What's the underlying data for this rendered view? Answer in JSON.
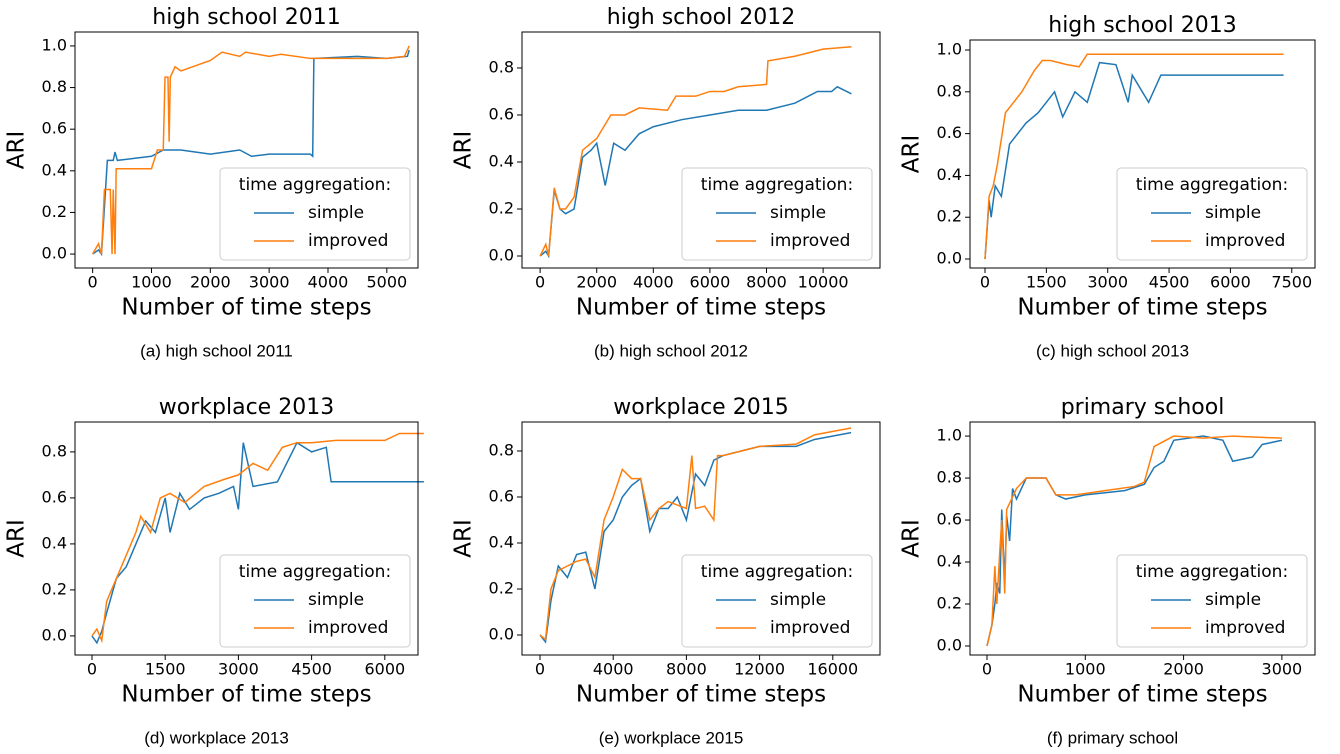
{
  "chart_data": [
    {
      "type": "line",
      "title": "high school 2011",
      "x_label": "Number of time steps",
      "y_label": "ARI",
      "caption": "(a) high school 2011",
      "legend_title": "time aggregation:",
      "legend": "lower right",
      "xlim": [
        -300,
        5530
      ],
      "ylim": [
        -0.067,
        1.067
      ],
      "xticks": [
        0,
        1000,
        2000,
        3000,
        4000,
        5000
      ],
      "yticks": [
        {
          "value": 0,
          "label": "0.0"
        },
        0.2,
        0.4,
        0.6,
        0.8,
        {
          "value": 1,
          "label": "1.0"
        }
      ],
      "series": [
        {
          "name": "simple",
          "color": "#1f77b4",
          "x": [
            0,
            100,
            150,
            250,
            350,
            380,
            420,
            1000,
            1200,
            1500,
            2000,
            2500,
            2700,
            3000,
            3700,
            3740,
            3760,
            4500,
            5000,
            5350,
            5380
          ],
          "values": [
            0,
            0.02,
            0,
            0.45,
            0.45,
            0.49,
            0.45,
            0.47,
            0.5,
            0.5,
            0.48,
            0.5,
            0.47,
            0.48,
            0.48,
            0.47,
            0.94,
            0.95,
            0.94,
            0.95,
            0.98
          ]
        },
        {
          "name": "improved",
          "color": "#ff7f0e",
          "x": [
            0,
            100,
            150,
            200,
            300,
            330,
            350,
            380,
            400,
            1000,
            1100,
            1200,
            1230,
            1280,
            1300,
            1320,
            1400,
            1500,
            2000,
            2200,
            2500,
            2600,
            3000,
            3200,
            3700,
            4500,
            5000,
            5300,
            5380
          ],
          "values": [
            0,
            0.05,
            0,
            0.31,
            0.31,
            0,
            0.31,
            0,
            0.41,
            0.41,
            0.5,
            0.5,
            0.85,
            0.85,
            0.54,
            0.85,
            0.9,
            0.88,
            0.93,
            0.97,
            0.95,
            0.97,
            0.95,
            0.96,
            0.94,
            0.94,
            0.94,
            0.95,
            1.0
          ]
        }
      ]
    },
    {
      "type": "line",
      "title": "high school 2012",
      "x_label": "Number of time steps",
      "y_label": "ARI",
      "caption": "(b) high school 2012",
      "legend_title": "time aggregation:",
      "legend": "lower right",
      "xlim": [
        -640,
        12010
      ],
      "ylim": [
        -0.051,
        0.953
      ],
      "xticks": [
        0,
        2000,
        4000,
        6000,
        8000,
        10000
      ],
      "yticks": [
        {
          "value": 0,
          "label": "0.0"
        },
        0.2,
        0.4,
        0.6,
        0.8
      ],
      "series": [
        {
          "name": "simple",
          "color": "#1f77b4",
          "x": [
            0,
            200,
            300,
            500,
            700,
            900,
            1200,
            1500,
            1800,
            2000,
            2300,
            2600,
            3000,
            3500,
            4000,
            5000,
            6000,
            7000,
            8000,
            9000,
            9800,
            10300,
            10500,
            11000
          ],
          "values": [
            0,
            0.02,
            0,
            0.28,
            0.2,
            0.18,
            0.2,
            0.42,
            0.45,
            0.48,
            0.3,
            0.48,
            0.45,
            0.52,
            0.55,
            0.58,
            0.6,
            0.62,
            0.62,
            0.65,
            0.7,
            0.7,
            0.72,
            0.69
          ]
        },
        {
          "name": "improved",
          "color": "#ff7f0e",
          "x": [
            0,
            200,
            300,
            500,
            700,
            900,
            1200,
            1500,
            2000,
            2500,
            3000,
            3500,
            4500,
            4800,
            5500,
            6000,
            6500,
            7000,
            8000,
            8050,
            9000,
            10000,
            11000
          ],
          "values": [
            0,
            0.05,
            0,
            0.29,
            0.2,
            0.2,
            0.25,
            0.45,
            0.5,
            0.6,
            0.6,
            0.63,
            0.62,
            0.68,
            0.68,
            0.7,
            0.7,
            0.72,
            0.73,
            0.83,
            0.85,
            0.88,
            0.89
          ]
        }
      ]
    },
    {
      "type": "line",
      "title": "high school 2013",
      "x_label": "Number of time steps",
      "y_label": "ARI",
      "caption": "(c) high school 2013",
      "legend_title": "time aggregation:",
      "legend": "lower right",
      "xlim": [
        -367,
        8068
      ],
      "ylim": [
        -0.043,
        1.048
      ],
      "xticks": [
        0,
        1500,
        3000,
        4500,
        6000,
        7500
      ],
      "yticks": [
        {
          "value": 0,
          "label": "0.0"
        },
        0.2,
        0.4,
        0.6,
        0.8,
        {
          "value": 1,
          "label": "1.0"
        }
      ],
      "series": [
        {
          "name": "simple",
          "color": "#1f77b4",
          "x": [
            0,
            100,
            150,
            250,
            400,
            600,
            800,
            1000,
            1300,
            1500,
            1700,
            1900,
            2200,
            2500,
            2800,
            3200,
            3500,
            3600,
            4000,
            4300,
            4500,
            7300
          ],
          "values": [
            0,
            0.28,
            0.2,
            0.35,
            0.3,
            0.55,
            0.6,
            0.65,
            0.7,
            0.75,
            0.8,
            0.68,
            0.8,
            0.75,
            0.94,
            0.93,
            0.75,
            0.88,
            0.75,
            0.88,
            0.88,
            0.88
          ]
        },
        {
          "name": "improved",
          "color": "#ff7f0e",
          "x": [
            0,
            100,
            200,
            300,
            500,
            700,
            900,
            1200,
            1400,
            1600,
            2000,
            2300,
            2500,
            3000,
            4000,
            5000,
            7300
          ],
          "values": [
            0,
            0.3,
            0.35,
            0.45,
            0.7,
            0.75,
            0.8,
            0.9,
            0.95,
            0.95,
            0.93,
            0.92,
            0.98,
            0.98,
            0.98,
            0.98,
            0.98
          ]
        }
      ]
    },
    {
      "type": "line",
      "title": "workplace 2013",
      "x_label": "Number of time steps",
      "y_label": "ARI",
      "caption": "(d) workplace 2013",
      "legend_title": "time aggregation:",
      "legend": "lower right",
      "xlim": [
        -348,
        6680
      ],
      "ylim": [
        -0.083,
        0.93
      ],
      "xticks": [
        0,
        1500,
        3000,
        4500,
        6000
      ],
      "yticks": [
        {
          "value": 0,
          "label": "0.0"
        },
        0.2,
        0.4,
        0.6,
        0.8
      ],
      "series": [
        {
          "name": "simple",
          "color": "#1f77b4",
          "x": [
            0,
            100,
            200,
            300,
            500,
            700,
            900,
            1100,
            1300,
            1500,
            1600,
            1800,
            2000,
            2300,
            2600,
            2900,
            3000,
            3100,
            3300,
            3800,
            4200,
            4500,
            4800,
            4900,
            5500,
            6800
          ],
          "values": [
            0,
            -0.03,
            0.02,
            0.1,
            0.25,
            0.3,
            0.4,
            0.5,
            0.45,
            0.6,
            0.45,
            0.62,
            0.55,
            0.6,
            0.62,
            0.65,
            0.55,
            0.84,
            0.65,
            0.67,
            0.84,
            0.8,
            0.82,
            0.67,
            0.67,
            0.67
          ]
        },
        {
          "name": "improved",
          "color": "#ff7f0e",
          "x": [
            0,
            100,
            200,
            300,
            500,
            700,
            900,
            1000,
            1200,
            1400,
            1600,
            1900,
            2300,
            2700,
            3000,
            3300,
            3600,
            3900,
            4200,
            4500,
            5000,
            6000,
            6300,
            6800
          ],
          "values": [
            0,
            0.03,
            -0.02,
            0.15,
            0.25,
            0.35,
            0.45,
            0.52,
            0.45,
            0.6,
            0.62,
            0.58,
            0.65,
            0.68,
            0.7,
            0.75,
            0.72,
            0.82,
            0.84,
            0.84,
            0.85,
            0.85,
            0.88,
            0.88
          ]
        }
      ]
    },
    {
      "type": "line",
      "title": "workplace 2015",
      "x_label": "Number of time steps",
      "y_label": "ARI",
      "caption": "(e) workplace 2015",
      "legend_title": "time aggregation:",
      "legend": "lower right",
      "xlim": [
        -984,
        18580
      ],
      "ylim": [
        -0.087,
        0.926
      ],
      "xticks": [
        0,
        4000,
        8000,
        12000,
        16000
      ],
      "yticks": [
        {
          "value": 0,
          "label": "0.0"
        },
        0.2,
        0.4,
        0.6,
        0.8
      ],
      "series": [
        {
          "name": "simple",
          "color": "#1f77b4",
          "x": [
            0,
            300,
            600,
            1000,
            1500,
            2000,
            2500,
            3000,
            3500,
            4000,
            4500,
            5000,
            5500,
            6000,
            6500,
            7000,
            7500,
            8000,
            8500,
            9000,
            9500,
            10000,
            11000,
            12000,
            14000,
            15000,
            17000
          ],
          "values": [
            0,
            -0.03,
            0.15,
            0.3,
            0.25,
            0.35,
            0.36,
            0.2,
            0.45,
            0.5,
            0.6,
            0.65,
            0.68,
            0.45,
            0.55,
            0.55,
            0.6,
            0.5,
            0.7,
            0.65,
            0.76,
            0.78,
            0.8,
            0.82,
            0.82,
            0.85,
            0.88
          ]
        },
        {
          "name": "improved",
          "color": "#ff7f0e",
          "x": [
            0,
            300,
            600,
            1000,
            1500,
            2000,
            2500,
            3000,
            3500,
            4000,
            4500,
            5000,
            5500,
            6000,
            6500,
            7000,
            8000,
            8300,
            8500,
            9000,
            9500,
            9700,
            10000,
            11000,
            12000,
            14000,
            15000,
            17000
          ],
          "values": [
            0,
            -0.02,
            0.2,
            0.28,
            0.3,
            0.32,
            0.33,
            0.25,
            0.5,
            0.6,
            0.72,
            0.68,
            0.68,
            0.5,
            0.55,
            0.58,
            0.55,
            0.78,
            0.55,
            0.56,
            0.5,
            0.78,
            0.78,
            0.8,
            0.82,
            0.83,
            0.87,
            0.9
          ]
        }
      ]
    },
    {
      "type": "line",
      "title": "primary school",
      "x_label": "Number of time steps",
      "y_label": "ARI",
      "caption": "(f) primary school",
      "legend_title": "time aggregation:",
      "legend": "lower right",
      "xlim": [
        -173,
        3337
      ],
      "ylim": [
        -0.043,
        1.067
      ],
      "xticks": [
        0,
        1000,
        2000,
        3000
      ],
      "yticks": [
        {
          "value": 0,
          "label": "0.0"
        },
        0.2,
        0.4,
        0.6,
        0.8,
        {
          "value": 1,
          "label": "1.0"
        }
      ],
      "series": [
        {
          "name": "simple",
          "color": "#1f77b4",
          "x": [
            0,
            50,
            80,
            100,
            130,
            150,
            180,
            200,
            230,
            260,
            300,
            400,
            600,
            700,
            800,
            1000,
            1200,
            1400,
            1600,
            1700,
            1800,
            1900,
            2200,
            2400,
            2500,
            2700,
            2800,
            3000
          ],
          "values": [
            0,
            0.1,
            0.2,
            0.3,
            0.25,
            0.65,
            0.3,
            0.62,
            0.5,
            0.75,
            0.7,
            0.8,
            0.8,
            0.72,
            0.7,
            0.72,
            0.73,
            0.74,
            0.77,
            0.85,
            0.88,
            0.98,
            1.0,
            0.98,
            0.88,
            0.9,
            0.96,
            0.98
          ]
        },
        {
          "name": "improved",
          "color": "#ff7f0e",
          "x": [
            0,
            50,
            80,
            100,
            130,
            150,
            180,
            200,
            250,
            300,
            400,
            600,
            700,
            900,
            1200,
            1500,
            1600,
            1700,
            1900,
            2200,
            2500,
            3000
          ],
          "values": [
            0,
            0.1,
            0.38,
            0.2,
            0.45,
            0.6,
            0.25,
            0.65,
            0.7,
            0.75,
            0.8,
            0.8,
            0.72,
            0.72,
            0.74,
            0.76,
            0.78,
            0.95,
            1.0,
            0.99,
            1.0,
            0.99
          ]
        }
      ]
    }
  ]
}
